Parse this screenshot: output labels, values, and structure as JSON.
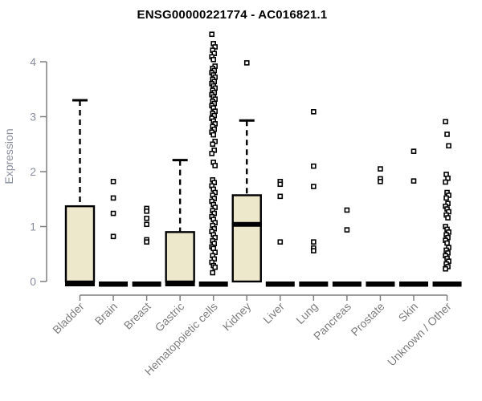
{
  "chart_data": {
    "type": "boxplot",
    "title": "ENSG00000221774 - AC016821.1",
    "ylabel": "Expression",
    "xlabel": "",
    "ylim": [
      0,
      4.5
    ],
    "yticks": [
      0,
      1,
      2,
      3,
      4
    ],
    "grid": false,
    "legend": "none",
    "box_fill": "#ede7cc",
    "box_stroke": "#000000",
    "axis_color": "#7f7f7f",
    "tick_label_color": "#8a8d9c",
    "category_label_color": "#7d7d7d",
    "outlier_marker": "open-square",
    "categories": [
      {
        "label": "Bladder",
        "q1": 0,
        "median": 0.02,
        "q3": 1.37,
        "whisker_low": 0,
        "whisker_high": 3.3,
        "outliers": []
      },
      {
        "label": "Brain",
        "q1": 0,
        "median": 0,
        "q3": 0,
        "whisker_low": 0,
        "whisker_high": 0,
        "outliers": [
          1.82,
          1.52,
          1.24,
          0.82
        ]
      },
      {
        "label": "Breast",
        "q1": 0,
        "median": 0,
        "q3": 0,
        "whisker_low": 0,
        "whisker_high": 0,
        "outliers": [
          1.33,
          1.28,
          1.15,
          1.04,
          0.76,
          0.72
        ]
      },
      {
        "label": "Gastric",
        "q1": 0,
        "median": 0.02,
        "q3": 0.9,
        "whisker_low": 0,
        "whisker_high": 2.21,
        "outliers": []
      },
      {
        "label": "Hematopoietic cells",
        "q1": 0,
        "median": 0,
        "q3": 0,
        "whisker_low": 0,
        "whisker_high": 0,
        "outliers": [
          4.5,
          4.33,
          4.27,
          4.21,
          4.15,
          4.09,
          4.04,
          3.92,
          3.88,
          3.84,
          3.8,
          3.76,
          3.72,
          3.68,
          3.64,
          3.6,
          3.56,
          3.52,
          3.48,
          3.44,
          3.4,
          3.36,
          3.32,
          3.28,
          3.24,
          3.2,
          3.16,
          3.1,
          3.06,
          3.02,
          2.97,
          2.92,
          2.87,
          2.82,
          2.77,
          2.72,
          2.67,
          2.55,
          2.5,
          2.39,
          2.33,
          2.17,
          2.11,
          1.85,
          1.8,
          1.74,
          1.68,
          1.62,
          1.57,
          1.51,
          1.46,
          1.4,
          1.35,
          1.29,
          1.24,
          1.18,
          1.13,
          1.07,
          1.02,
          0.96,
          0.91,
          0.85,
          0.8,
          0.74,
          0.69,
          0.63,
          0.6,
          0.53,
          0.47,
          0.41,
          0.35,
          0.29,
          0.26,
          0.16
        ]
      },
      {
        "label": "Kidney",
        "q1": 0,
        "median": 1.04,
        "q3": 1.57,
        "whisker_low": 0,
        "whisker_high": 2.93,
        "outliers": [
          3.98
        ]
      },
      {
        "label": "Liver",
        "q1": 0,
        "median": 0,
        "q3": 0,
        "whisker_low": 0,
        "whisker_high": 0,
        "outliers": [
          1.82,
          1.77,
          1.55,
          0.72
        ]
      },
      {
        "label": "Lung",
        "q1": 0,
        "median": 0,
        "q3": 0,
        "whisker_low": 0,
        "whisker_high": 0,
        "outliers": [
          3.09,
          2.1,
          1.73,
          0.72,
          0.61,
          0.56
        ]
      },
      {
        "label": "Pancreas",
        "q1": 0,
        "median": 0,
        "q3": 0,
        "whisker_low": 0,
        "whisker_high": 0,
        "outliers": [
          1.3,
          0.94
        ]
      },
      {
        "label": "Prostate",
        "q1": 0,
        "median": 0,
        "q3": 0,
        "whisker_low": 0,
        "whisker_high": 0,
        "outliers": [
          2.05,
          1.87,
          1.82
        ]
      },
      {
        "label": "Skin",
        "q1": 0,
        "median": 0,
        "q3": 0,
        "whisker_low": 0,
        "whisker_high": 0,
        "outliers": [
          2.37,
          1.83
        ]
      },
      {
        "label": "Unknown / Other",
        "q1": 0,
        "median": 0,
        "q3": 0,
        "whisker_low": 0,
        "whisker_high": 0,
        "outliers": [
          2.91,
          2.68,
          2.47,
          1.95,
          1.88,
          1.81,
          1.62,
          1.57,
          1.52,
          1.42,
          1.37,
          1.32,
          1.27,
          1.21,
          1.16,
          1.0,
          0.95,
          0.9,
          0.85,
          0.8,
          0.75,
          0.7,
          0.62,
          0.57,
          0.52,
          0.47,
          0.42,
          0.37,
          0.32,
          0.27,
          0.23
        ]
      }
    ]
  }
}
